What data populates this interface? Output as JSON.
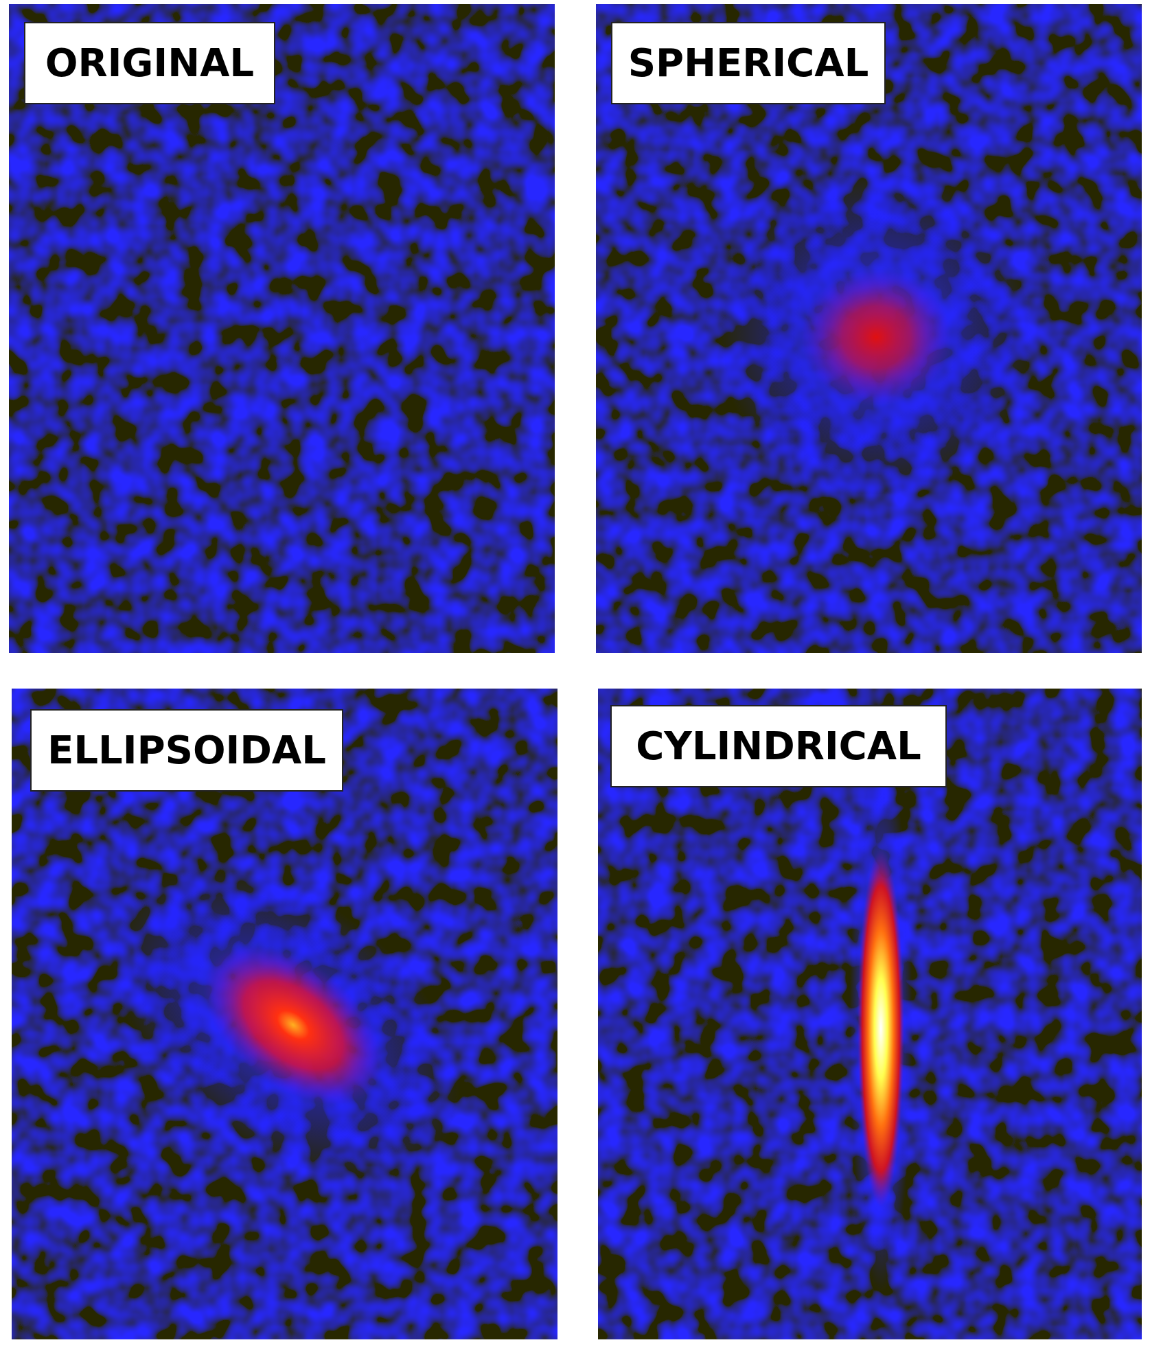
{
  "panels": [
    {
      "id": "original",
      "label": "ORIGINAL"
    },
    {
      "id": "spherical",
      "label": "SPHERICAL"
    },
    {
      "id": "ellipsoidal",
      "label": "ELLIPSOIDAL"
    },
    {
      "id": "cylindrical",
      "label": "CYLINDRICAL"
    }
  ],
  "colors": {
    "background_dark": "#04041e",
    "noise_blue": "#1a1aff",
    "hot_red": "#ff1a1a",
    "hot_yellow": "#ffff40",
    "hot_white": "#ffffff"
  }
}
